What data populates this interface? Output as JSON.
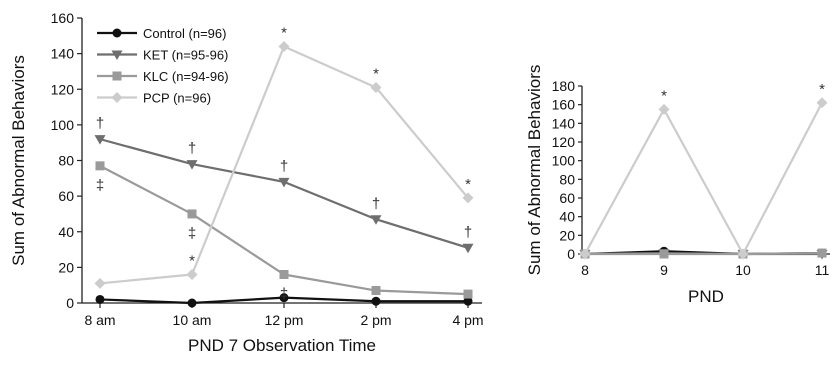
{
  "chart_data": [
    {
      "type": "line",
      "xlabel": "PND 7 Observation Time",
      "ylabel": "Sum of Abnormal Behaviors",
      "categories": [
        "8 am",
        "10 am",
        "12 pm",
        "2 pm",
        "4 pm"
      ],
      "ylim": [
        0,
        160
      ],
      "yticks": [
        0,
        20,
        40,
        60,
        80,
        100,
        120,
        140,
        160
      ],
      "grid": false,
      "legend_position": "top-left",
      "series": [
        {
          "name": "Control (n=96)",
          "color": "#111111",
          "marker": "circle",
          "values": [
            2,
            0,
            3,
            1,
            1
          ],
          "annotations": [
            "",
            "",
            "",
            "",
            ""
          ]
        },
        {
          "name": "KET (n=95-96)",
          "color": "#6e6e6e",
          "marker": "triangle-down",
          "values": [
            92,
            78,
            68,
            47,
            31
          ],
          "annotations": [
            "†",
            "†",
            "†",
            "†",
            "†"
          ]
        },
        {
          "name": "KLC (n=94-96)",
          "color": "#9a9a9a",
          "marker": "square",
          "values": [
            77,
            50,
            16,
            7,
            5
          ],
          "annotations": [
            "‡",
            "‡",
            "‡",
            "",
            ""
          ]
        },
        {
          "name": "PCP (n=96)",
          "color": "#cccccc",
          "marker": "diamond",
          "values": [
            11,
            16,
            144,
            121,
            59
          ],
          "annotations": [
            "",
            "*",
            "*",
            "*",
            "*"
          ]
        }
      ]
    },
    {
      "type": "line",
      "xlabel": "PND",
      "ylabel": "Sum of Abnormal Behaviors",
      "categories": [
        "8",
        "9",
        "10",
        "11"
      ],
      "ylim": [
        0,
        180
      ],
      "yticks": [
        0,
        20,
        40,
        60,
        80,
        100,
        120,
        140,
        160,
        180
      ],
      "grid": false,
      "series": [
        {
          "color": "#111111",
          "marker": "circle",
          "values": [
            0,
            3,
            0,
            1
          ],
          "annotations": [
            "",
            "",
            "",
            ""
          ]
        },
        {
          "color": "#6e6e6e",
          "marker": "triangle-down",
          "values": [
            0,
            1,
            0,
            0
          ],
          "annotations": [
            "",
            "",
            "",
            ""
          ]
        },
        {
          "color": "#9a9a9a",
          "marker": "square",
          "values": [
            0,
            0,
            0,
            1
          ],
          "annotations": [
            "",
            "",
            "",
            ""
          ]
        },
        {
          "color": "#cccccc",
          "marker": "diamond",
          "values": [
            0,
            155,
            0,
            162
          ],
          "annotations": [
            "",
            "*",
            "",
            "*"
          ]
        }
      ]
    }
  ]
}
